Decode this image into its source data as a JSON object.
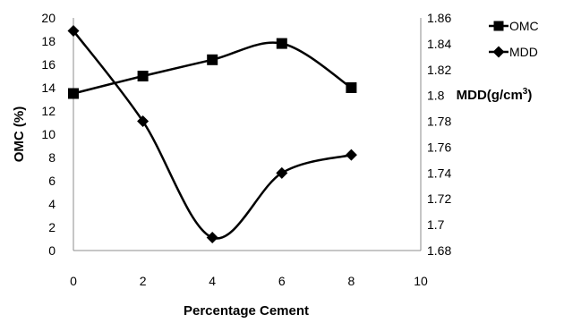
{
  "chart_data": {
    "type": "line",
    "title": "",
    "xlabel": "Percentage Cement",
    "ylabel_left": "OMC (%)",
    "ylabel_right_base": "MDD(g/cm",
    "ylabel_right_sup": "3",
    "ylabel_right_end": ")",
    "xlim": [
      0,
      10
    ],
    "ylim_left": [
      0,
      20
    ],
    "ylim_right": [
      1.68,
      1.86
    ],
    "x_ticks": [
      "0",
      "2",
      "4",
      "6",
      "8",
      "10"
    ],
    "y_left_ticks": [
      "0",
      "2",
      "4",
      "6",
      "8",
      "10",
      "12",
      "14",
      "16",
      "18",
      "20"
    ],
    "y_right_ticks": [
      "1.68",
      "1.7",
      "1.72",
      "1.74",
      "1.76",
      "1.78",
      "1.8",
      "1.82",
      "1.84",
      "1.86"
    ],
    "grid": false,
    "legend_position": "top-right",
    "smooth": true,
    "series": [
      {
        "name": "OMC",
        "axis": "left",
        "marker": "square",
        "color": "#000000",
        "x": [
          0,
          2,
          4,
          6,
          8
        ],
        "y": [
          13.5,
          15.0,
          16.4,
          17.8,
          14.0
        ]
      },
      {
        "name": "MDD",
        "axis": "right",
        "marker": "diamond",
        "color": "#000000",
        "x": [
          0,
          2,
          4,
          6,
          8
        ],
        "y": [
          1.85,
          1.78,
          1.69,
          1.74,
          1.754
        ]
      }
    ]
  }
}
